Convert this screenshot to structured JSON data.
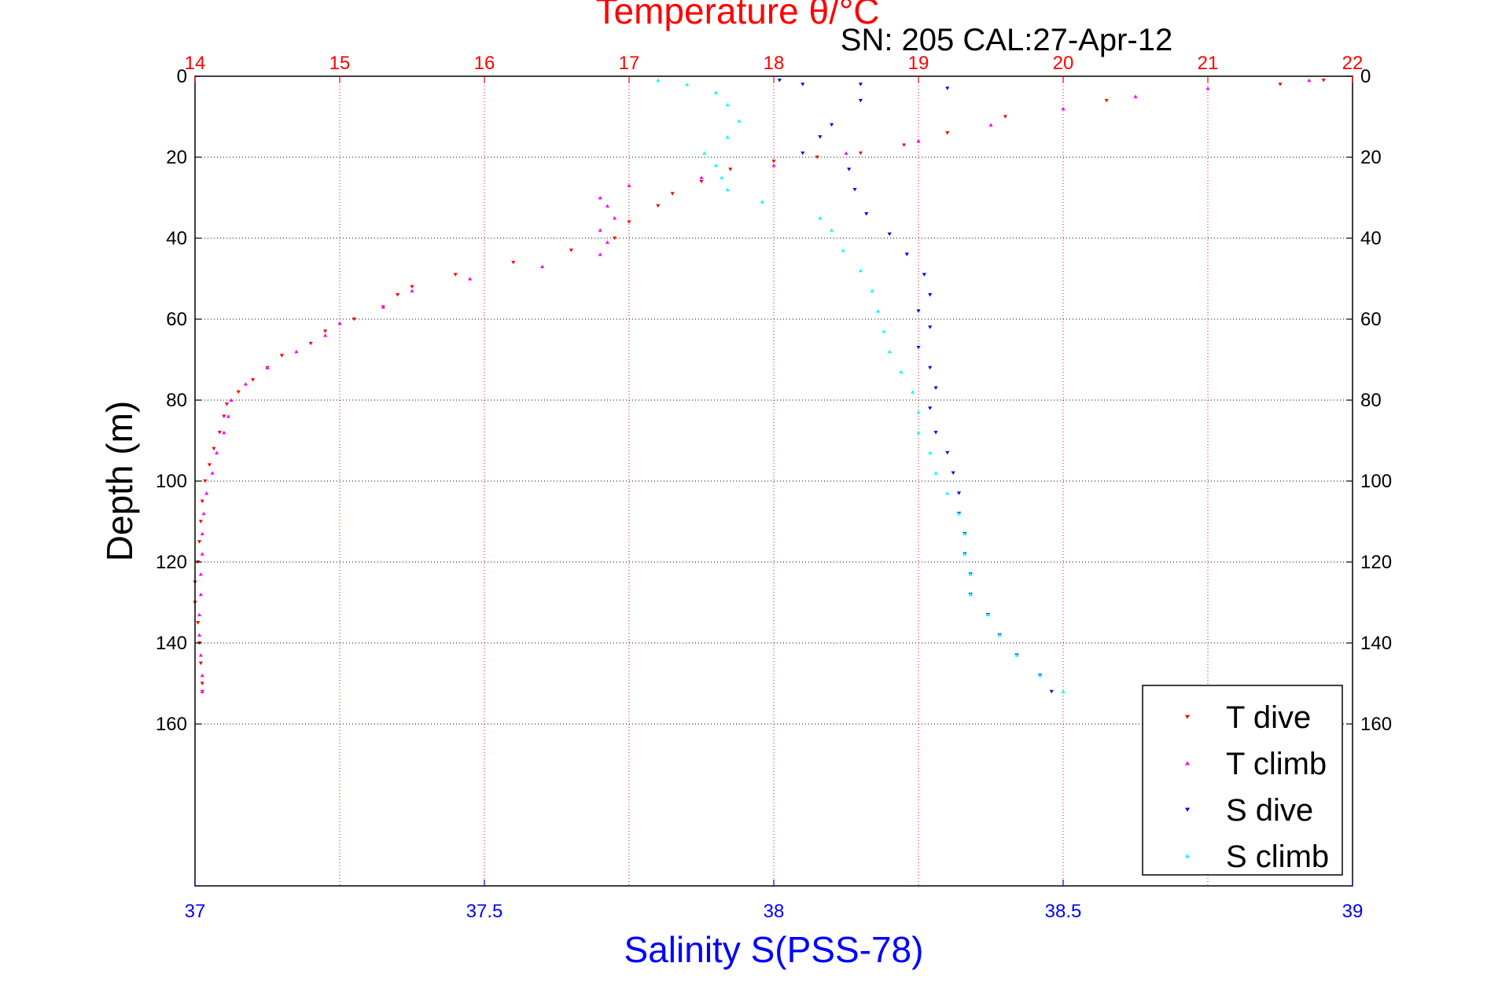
{
  "chart_data": {
    "type": "scatter",
    "title": "Temperature θ/°C",
    "subtitle": "SN: 205  CAL:27-Apr-12",
    "ylabel": "Depth (m)",
    "y_axis": {
      "range": [
        0,
        200
      ],
      "reversed": true,
      "ticks": [
        0,
        20,
        40,
        60,
        80,
        100,
        120,
        140,
        160
      ],
      "tick_labels": [
        "0",
        "20",
        "40",
        "60",
        "80",
        "100",
        "120",
        "140",
        "160"
      ]
    },
    "x_top": {
      "label": "Temperature θ/°C",
      "range": [
        14,
        22
      ],
      "ticks": [
        14,
        15,
        16,
        17,
        18,
        19,
        20,
        21,
        22
      ],
      "tick_labels": [
        "14",
        "15",
        "16",
        "17",
        "18",
        "19",
        "20",
        "21",
        "22"
      ],
      "color": "#ff0000"
    },
    "x_bottom": {
      "label": "Salinity S(PSS-78)",
      "range": [
        37,
        39
      ],
      "ticks": [
        37,
        37.5,
        38,
        38.5,
        39
      ],
      "tick_labels": [
        "37",
        "37.5",
        "38",
        "38.5",
        "39"
      ],
      "color": "#0000ff"
    },
    "grid": true,
    "legend_position": "bottom-right",
    "series": [
      {
        "name": "T dive",
        "axis": "top",
        "color": "#ff0000",
        "marker": "triangle-down",
        "points": [
          [
            21.8,
            1
          ],
          [
            21.5,
            2
          ],
          [
            20.3,
            6
          ],
          [
            19.6,
            10
          ],
          [
            19.2,
            14
          ],
          [
            18.9,
            17
          ],
          [
            18.6,
            19
          ],
          [
            18.3,
            20
          ],
          [
            18.0,
            21
          ],
          [
            17.7,
            23
          ],
          [
            17.5,
            26
          ],
          [
            17.3,
            29
          ],
          [
            17.2,
            32
          ],
          [
            17.0,
            36
          ],
          [
            16.9,
            40
          ],
          [
            16.6,
            43
          ],
          [
            16.2,
            46
          ],
          [
            15.8,
            49
          ],
          [
            15.5,
            52
          ],
          [
            15.4,
            54
          ],
          [
            15.3,
            57
          ],
          [
            15.1,
            60
          ],
          [
            14.9,
            63
          ],
          [
            14.8,
            66
          ],
          [
            14.6,
            69
          ],
          [
            14.5,
            72
          ],
          [
            14.4,
            75
          ],
          [
            14.3,
            78
          ],
          [
            14.22,
            81
          ],
          [
            14.2,
            84
          ],
          [
            14.17,
            88
          ],
          [
            14.13,
            92
          ],
          [
            14.1,
            96
          ],
          [
            14.07,
            100
          ],
          [
            14.05,
            105
          ],
          [
            14.04,
            110
          ],
          [
            14.03,
            115
          ],
          [
            14.02,
            120
          ],
          [
            14.0,
            125
          ],
          [
            14.0,
            130
          ],
          [
            14.02,
            135
          ],
          [
            14.03,
            140
          ],
          [
            14.04,
            145
          ],
          [
            14.05,
            150
          ],
          [
            14.05,
            152
          ]
        ]
      },
      {
        "name": "T climb",
        "axis": "top",
        "color": "#ff00ff",
        "marker": "triangle-up",
        "points": [
          [
            14.05,
            152
          ],
          [
            14.05,
            148
          ],
          [
            14.04,
            143
          ],
          [
            14.03,
            138
          ],
          [
            14.03,
            133
          ],
          [
            14.04,
            128
          ],
          [
            14.04,
            123
          ],
          [
            14.05,
            118
          ],
          [
            14.05,
            113
          ],
          [
            14.06,
            108
          ],
          [
            14.08,
            103
          ],
          [
            14.12,
            98
          ],
          [
            14.15,
            93
          ],
          [
            14.2,
            88
          ],
          [
            14.23,
            84
          ],
          [
            14.25,
            80
          ],
          [
            14.35,
            76
          ],
          [
            14.5,
            72
          ],
          [
            14.7,
            68
          ],
          [
            14.9,
            64
          ],
          [
            15.0,
            61
          ],
          [
            15.3,
            57
          ],
          [
            15.5,
            53
          ],
          [
            15.9,
            50
          ],
          [
            16.4,
            47
          ],
          [
            16.8,
            44
          ],
          [
            16.85,
            41
          ],
          [
            16.8,
            38
          ],
          [
            16.9,
            35
          ],
          [
            16.85,
            32
          ],
          [
            16.8,
            30
          ],
          [
            17.0,
            27
          ],
          [
            17.5,
            25
          ],
          [
            18.0,
            22
          ],
          [
            18.5,
            19
          ],
          [
            19.0,
            16
          ],
          [
            19.5,
            12
          ],
          [
            20.0,
            8
          ],
          [
            20.5,
            5
          ],
          [
            21.0,
            3
          ],
          [
            21.7,
            1
          ]
        ]
      },
      {
        "name": "S dive",
        "axis": "bottom",
        "color": "#0000ff",
        "marker": "triangle-down",
        "points": [
          [
            38.01,
            1
          ],
          [
            38.05,
            2
          ],
          [
            38.15,
            2
          ],
          [
            38.3,
            3
          ],
          [
            38.15,
            6
          ],
          [
            38.1,
            12
          ],
          [
            38.08,
            15
          ],
          [
            38.05,
            19
          ],
          [
            38.13,
            23
          ],
          [
            38.14,
            28
          ],
          [
            38.16,
            34
          ],
          [
            38.2,
            39
          ],
          [
            38.23,
            44
          ],
          [
            38.26,
            49
          ],
          [
            38.27,
            54
          ],
          [
            38.25,
            58
          ],
          [
            38.27,
            62
          ],
          [
            38.25,
            67
          ],
          [
            38.27,
            72
          ],
          [
            38.28,
            77
          ],
          [
            38.27,
            82
          ],
          [
            38.28,
            88
          ],
          [
            38.3,
            93
          ],
          [
            38.31,
            98
          ],
          [
            38.32,
            103
          ],
          [
            38.32,
            108
          ],
          [
            38.33,
            113
          ],
          [
            38.33,
            118
          ],
          [
            38.34,
            123
          ],
          [
            38.34,
            128
          ],
          [
            38.37,
            133
          ],
          [
            38.39,
            138
          ],
          [
            38.42,
            143
          ],
          [
            38.46,
            148
          ],
          [
            38.48,
            152
          ]
        ]
      },
      {
        "name": "S climb",
        "axis": "bottom",
        "color": "#00ffff",
        "marker": "triangle-up",
        "points": [
          [
            38.5,
            152
          ],
          [
            38.46,
            148
          ],
          [
            38.42,
            143
          ],
          [
            38.39,
            138
          ],
          [
            38.37,
            133
          ],
          [
            38.34,
            128
          ],
          [
            38.34,
            123
          ],
          [
            38.33,
            118
          ],
          [
            38.33,
            113
          ],
          [
            38.32,
            108
          ],
          [
            38.3,
            103
          ],
          [
            38.28,
            98
          ],
          [
            38.27,
            93
          ],
          [
            38.25,
            88
          ],
          [
            38.25,
            83
          ],
          [
            38.24,
            78
          ],
          [
            38.22,
            73
          ],
          [
            38.2,
            68
          ],
          [
            38.19,
            63
          ],
          [
            38.18,
            58
          ],
          [
            38.17,
            53
          ],
          [
            38.15,
            48
          ],
          [
            38.12,
            43
          ],
          [
            38.1,
            38
          ],
          [
            38.08,
            35
          ],
          [
            37.98,
            31
          ],
          [
            37.92,
            28
          ],
          [
            37.91,
            25
          ],
          [
            37.9,
            22
          ],
          [
            37.88,
            19
          ],
          [
            37.92,
            15
          ],
          [
            37.94,
            11
          ],
          [
            37.92,
            7
          ],
          [
            37.9,
            4
          ],
          [
            37.85,
            2
          ],
          [
            37.8,
            1
          ]
        ]
      }
    ]
  }
}
